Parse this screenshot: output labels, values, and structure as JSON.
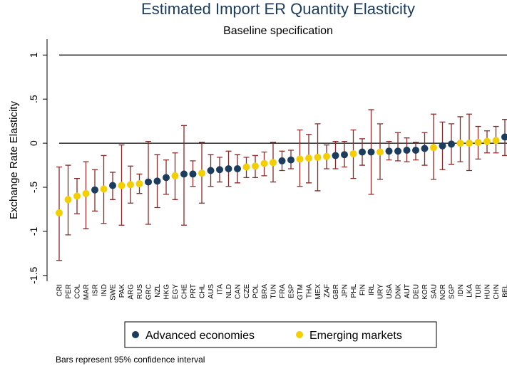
{
  "chart_data": {
    "type": "errorbar-dot",
    "title": "Estimated Import ER Quantity Elasticity",
    "subtitle": "Baseline specification",
    "y_label": "Exchange Rate Elasticity",
    "note": "Bars represent 95% confidence interval",
    "categories": [
      "CRI",
      "PER",
      "COL",
      "MAR",
      "ISR",
      "IND",
      "SWE",
      "PAK",
      "ARG",
      "RUS",
      "GRC",
      "NZL",
      "HKG",
      "EGY",
      "CHE",
      "PRT",
      "CHL",
      "AUS",
      "ITA",
      "NLD",
      "CAN",
      "CZE",
      "POL",
      "BRA",
      "TUN",
      "FRA",
      "ESP",
      "GTM",
      "THA",
      "MEX",
      "ZAF",
      "GBR",
      "JPN",
      "PHL",
      "FIN",
      "IRL",
      "URY",
      "USA",
      "DNK",
      "AUT",
      "DEU",
      "KOR",
      "SAU",
      "NOR",
      "SGP",
      "IDN",
      "LKA",
      "TUR",
      "HUN",
      "CHN",
      "BEL"
    ],
    "series": [
      {
        "name": "Advanced economies",
        "color": "#1c3c5e",
        "values": [
          null,
          null,
          null,
          null,
          -0.53,
          null,
          -0.48,
          null,
          null,
          null,
          -0.44,
          -0.43,
          -0.39,
          null,
          -0.35,
          -0.35,
          null,
          -0.31,
          -0.3,
          -0.29,
          -0.29,
          null,
          null,
          null,
          null,
          -0.2,
          -0.19,
          null,
          null,
          null,
          null,
          -0.14,
          -0.13,
          null,
          -0.1,
          -0.1,
          null,
          -0.09,
          -0.09,
          -0.08,
          -0.08,
          -0.06,
          null,
          -0.03,
          -0.01,
          null,
          null,
          null,
          null,
          null,
          0.07
        ]
      },
      {
        "name": "Emerging markets",
        "color": "#f4cf00",
        "values": [
          -0.79,
          -0.64,
          -0.6,
          -0.57,
          null,
          -0.52,
          null,
          -0.48,
          -0.47,
          -0.46,
          null,
          null,
          null,
          -0.37,
          null,
          null,
          -0.34,
          null,
          null,
          null,
          null,
          -0.27,
          -0.26,
          -0.23,
          -0.22,
          null,
          null,
          -0.18,
          -0.17,
          -0.16,
          -0.15,
          null,
          null,
          -0.12,
          null,
          null,
          -0.1,
          null,
          null,
          null,
          null,
          null,
          -0.05,
          null,
          null,
          0.0,
          0.0,
          0.01,
          0.02,
          0.03,
          null
        ]
      }
    ],
    "ci_low": [
      -1.33,
      -1.04,
      -0.8,
      -0.97,
      -0.77,
      -0.91,
      -0.64,
      -0.93,
      -0.68,
      -0.57,
      -0.92,
      -0.73,
      -0.58,
      -0.64,
      -0.93,
      -0.49,
      -0.68,
      -0.49,
      -0.44,
      -0.49,
      -0.45,
      -0.39,
      -0.39,
      -0.37,
      -0.44,
      -0.31,
      -0.29,
      -0.49,
      -0.45,
      -0.54,
      -0.29,
      -0.29,
      -0.27,
      -0.4,
      -0.25,
      -0.58,
      -0.41,
      -0.19,
      -0.2,
      -0.21,
      -0.19,
      -0.25,
      -0.41,
      -0.3,
      -0.24,
      -0.21,
      -0.31,
      -0.18,
      -0.11,
      -0.11,
      -0.14
    ],
    "ci_high": [
      -0.27,
      -0.25,
      -0.4,
      -0.21,
      -0.3,
      -0.14,
      -0.33,
      -0.02,
      -0.26,
      -0.35,
      0.02,
      -0.13,
      -0.19,
      -0.11,
      0.2,
      -0.2,
      0.01,
      -0.13,
      -0.16,
      -0.09,
      -0.13,
      -0.16,
      -0.14,
      -0.1,
      0.01,
      -0.09,
      -0.08,
      0.15,
      0.1,
      0.22,
      -0.02,
      0.02,
      0.02,
      0.15,
      0.05,
      0.38,
      0.22,
      0.02,
      0.12,
      0.06,
      0.01,
      0.12,
      0.33,
      0.24,
      0.22,
      0.3,
      0.33,
      0.19,
      0.14,
      0.19,
      0.27
    ],
    "error_color": "#8b2a2a",
    "reference_lines": [
      0,
      1
    ],
    "ylim": [
      -1.55,
      1.18
    ],
    "yticks": [
      {
        "value": -1.5,
        "label": "-1.5"
      },
      -1,
      {
        "value": -0.5,
        "label": "-.5"
      },
      0,
      {
        "value": 0.5,
        "label": ".5"
      },
      1
    ]
  }
}
